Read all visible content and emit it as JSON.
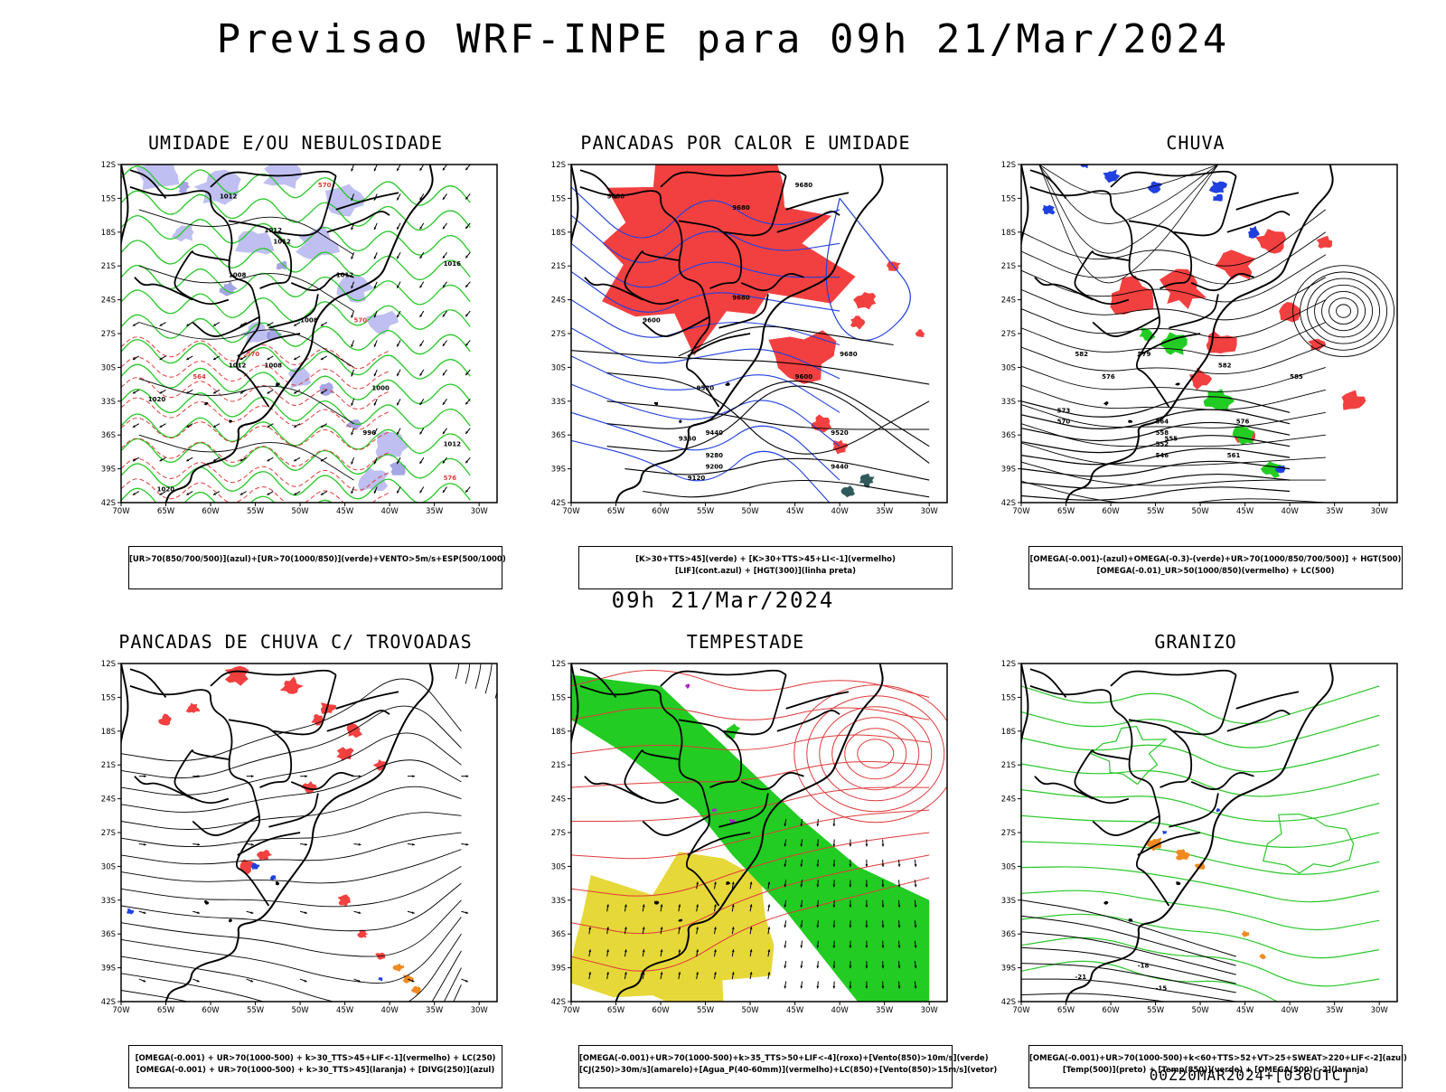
{
  "title": "Previsao WRF-INPE  para 09h 21/Mar/2024",
  "middle_date": "09h 21/Mar/2024",
  "run_stamp": "00Z20MAR2024+[036UTC]",
  "lat_ticks": [
    "12S",
    "15S",
    "18S",
    "21S",
    "24S",
    "27S",
    "30S",
    "33S",
    "36S",
    "39S",
    "42S"
  ],
  "lon_ticks": [
    "70W",
    "65W",
    "60W",
    "55W",
    "50W",
    "45W",
    "40W",
    "35W",
    "30W"
  ],
  "colors": {
    "blue_shade": "#b8b8f0",
    "red_fill": "#f24040",
    "green_fill": "#22cc22",
    "yellow_fill": "#e6d838",
    "orange_fill": "#f08a20",
    "dark_teal": "#2f5a5a",
    "contour_red": "#e03a3a",
    "contour_green": "#28c828",
    "contour_blue": "#2040e0"
  },
  "panels": [
    {
      "id": "umidade",
      "title": "UMIDADE E/OU NEBULOSIDADE",
      "legend": [
        "[UR>70(850/700/500)](azul)+[UR>70(1000/850)](verde)+VENTO>5m/s+ESP(500/1000)"
      ],
      "labels": [
        "1012",
        "1012",
        "1012",
        "1008",
        "1012",
        "1008",
        "1012",
        "1008",
        "1000",
        "996",
        "1012",
        "1020",
        "1020",
        "1016",
        "576",
        "570",
        "570",
        "570",
        "564",
        "576"
      ]
    },
    {
      "id": "pancadas_calor",
      "title": "PANCADAS POR CALOR E UMIDADE",
      "legend": [
        "[K>30+TTS>45](verde) + [K>30+TTS>45+LI<-1](vermelho)",
        "[LIF](cont.azul) + [HGT(300)](linha preta)"
      ],
      "labels": [
        "9680",
        "9680",
        "9680",
        "9680",
        "9600",
        "9520",
        "9440",
        "9360",
        "9280",
        "9200",
        "9120",
        "9600",
        "9520",
        "9440",
        "9680",
        "9680"
      ]
    },
    {
      "id": "chuva",
      "title": "CHUVA",
      "legend": [
        "[OMEGA(-0.001)-(azul)+OMEGA(-0.3)-(verde)+UR>70(1000/850/700/500)] + HGT(500)",
        "[OMEGA(-0.01)_UR>50(1000/850)(vermelho) + LC(500)"
      ],
      "labels": [
        "582",
        "579",
        "576",
        "573",
        "570",
        "564",
        "558",
        "555",
        "552",
        "546",
        "561",
        "582",
        "585",
        "576"
      ]
    },
    {
      "id": "trovoadas",
      "title": "PANCADAS DE CHUVA C/ TROVOADAS",
      "legend": [
        "[OMEGA(-0.001) + UR>70(1000-500) + k>30_TTS>45+LIF<-1](vermelho) + LC(250)",
        "[OMEGA(-0.001) + UR>70(1000-500) + k>30_TTS>45](laranja) + [DIVG(250)](azul)"
      ],
      "labels": []
    },
    {
      "id": "tempestade",
      "title": "TEMPESTADE",
      "legend": [
        "[OMEGA(-0.001)+UR>70(1000-500)+k>35_TTS>50+LIF<-4](roxo)+[Vento(850)>10m/s](verde)",
        "[CJ(250)>30m/s](amarelo)+[Agua_P(40-60mm)](vermelho)+LC(850)+[Vento(850)>15m/s](vetor)"
      ],
      "labels": []
    },
    {
      "id": "granizo",
      "title": "GRANIZO",
      "legend": [
        "[OMEGA(-0.001)+UR>70(1000-500)+k<60+TTS>52+VT>25+SWEAT>220+LIF<-2](azul)",
        "[Temp(500)](preto) + [Temp(850)](verde) + [OMEGA(500)<-2](laranja)"
      ],
      "labels": [
        "-18",
        "-21",
        "-15"
      ]
    }
  ]
}
